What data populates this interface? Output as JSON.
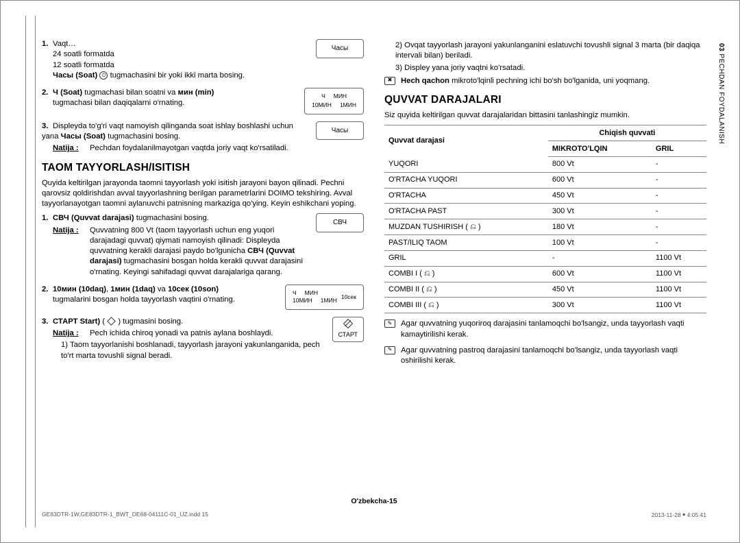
{
  "sideTab": {
    "prefix": "03",
    "label": "PECHDAN FOYDALANISH"
  },
  "left": {
    "step1": {
      "num": "1.",
      "title": "Vaqt…",
      "line1": "24 soatli formatda",
      "line2": "12 soatli formatda",
      "line3a": "Часы (Soat)",
      "line3b": " tugmachasini bir yoki ikki marta bosing.",
      "btn": "Часы"
    },
    "step2": {
      "num": "2.",
      "textA": "Ч (Soat) ",
      "textB": "tugmachasi bilan soatni va ",
      "textC": "мин (min) ",
      "textD": "tugmachasi bilan daqiqalarni o'rnating.",
      "btn": {
        "t1": "Ч",
        "t2": "МИН",
        "b1": "10МИН",
        "b2": "1МИН"
      }
    },
    "step3": {
      "num": "3.",
      "line1": "Displeyda to'g'ri vaqt namoyish qilinganda soat ishlay boshlashi uchun yana ",
      "line1b": "Часы (Soat)",
      "line1c": " tugmachasini bosing.",
      "resLabel": "Natija :",
      "resText": "Pechdan foydalanilmayotgan vaqtda joriy vaqt ko'rsatiladi.",
      "btn": "Часы"
    },
    "h2": "TAOM TAYYORLASH/ISITISH",
    "intro": "Quyida keltirilgan jarayonda taomni tayyorlash yoki isitish jarayoni bayon qilinadi. Pechni qarovsiz qoldirishdan avval tayyorlashning berilgan parametrlarini DOIMO tekshiring. Avval tayyorlanayotgan taomni aylanuvchi patnisning markaziga qo'ying. Keyin eshikchani yoping.",
    "s1": {
      "num": "1.",
      "bold": "СВЧ (Quvvat darajasi)",
      "rest": " tugmachasini bosing.",
      "resLabel": "Natija :",
      "resText": "Quvvatning 800 Vt (taom tayyorlash uchun eng yuqori darajadagi quvvat) qiymati namoyish qilinadi: Displeyda quvvatning kerakli darajasi paydo bo'lgunicha ",
      "resBold": "СВЧ (Quvvat darajasi)",
      "resTail": " tugmachasini bosgan holda kerakli quvvat darajasini o'rnating. Keyingi sahifadagi quvvat darajalariga qarang.",
      "btn": "СВЧ"
    },
    "s2": {
      "num": "2.",
      "bold": "10мин (10daq)",
      "mid": ", ",
      "bold2": "1мин (1daq)",
      "mid2": " va ",
      "bold3": "10сек (10son)",
      "rest": " tugmalarini bosgan holda tayyorlash vaqtini o'rnating.",
      "btn": {
        "t1": "Ч",
        "t2": "МИН",
        "b1": "10МИН",
        "b2": "1МИН",
        "ex": "10сек"
      }
    },
    "s3": {
      "num": "3.",
      "bold": "СТАРТ Start)",
      "rest": " tugmasini bosing.",
      "resLabel": "Natija :",
      "resText": "Pech ichida chiroq yonadi va patnis aylana boshlaydi.",
      "l1": "1)  Taom tayyorlanishi boshlanadi, tayyorlash jarayoni yakunlanganida, pech to'rt marta tovushli signal beradi.",
      "btn": "СТАРТ"
    }
  },
  "right": {
    "top2": "2)  Ovqat tayyorlash jarayoni yakunlanganini eslatuvchi tovushli signal 3 marta (bir daqiqa intervali bilan) beriladi.",
    "top3": "3)  Displey yana joriy vaqtni ko'rsatadi.",
    "warnBold": "Hech qachon",
    "warnRest": " mikroto'lqinli pechning ichi bo'sh bo'lganida, uni yoqmang.",
    "h2": "QUVVAT DARAJALARI",
    "intro": "Siz quyida keltirilgan quvvat darajalaridan bittasini tanlashingiz mumkin.",
    "table": {
      "h_level": "Quvvat darajasi",
      "h_output": "Chiqish quvvati",
      "h_mw": "MIKROTO'LQIN",
      "h_gril": "GRIL",
      "rows": [
        {
          "n": "YUQORI",
          "mw": "800 Vt",
          "g": "-"
        },
        {
          "n": "O'RTACHA YUQORI",
          "mw": "600 Vt",
          "g": "-"
        },
        {
          "n": "O'RTACHA",
          "mw": "450 Vt",
          "g": "-"
        },
        {
          "n": "O'RTACHA PAST",
          "mw": "300 Vt",
          "g": "-"
        },
        {
          "n": "MUZDAN TUSHIRISH ( ⎌ )",
          "mw": "180 Vt",
          "g": "-"
        },
        {
          "n": "PAST/ILIQ TAOM",
          "mw": "100 Vt",
          "g": "-"
        },
        {
          "n": "GRIL",
          "mw": "-",
          "g": "1100 Vt"
        },
        {
          "n": "COMBI I ( ⎌ )",
          "mw": "600 Vt",
          "g": "1100 Vt"
        },
        {
          "n": "COMBI II ( ⎌ )",
          "mw": "450 Vt",
          "g": "1100 Vt"
        },
        {
          "n": "COMBI III ( ⎌ )",
          "mw": "300 Vt",
          "g": "1100 Vt"
        }
      ]
    },
    "note1": "Agar quvvatning yuqoriroq darajasini tanlamoqchi bo'lsangiz, unda tayyorlash vaqti kamaytirilishi kerak.",
    "note2": "Agar quvvatning pastroq darajasini tanlamoqchi bo'lsangiz, unda tayyorlash vaqti oshirilishi kerak."
  },
  "pageNum": "O'zbekcha-15",
  "footer": {
    "left": "GE83DTR-1W,GE83DTR-1_BWT_DE68-04111C-01_UZ.indd   15",
    "right": "2013-11-28   ￭ 4:05:41"
  }
}
